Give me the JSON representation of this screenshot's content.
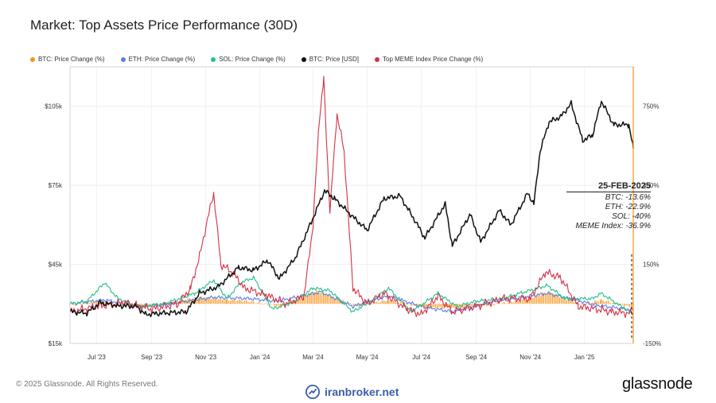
{
  "header": {
    "title": "Market: Top Assets Price Performance (30D)"
  },
  "legend": [
    {
      "label": "BTC: Price Change (%)",
      "color": "#f7931a"
    },
    {
      "label": "ETH: Price Change (%)",
      "color": "#5b7fe6"
    },
    {
      "label": "SOL: Price Change (%)",
      "color": "#21c08b"
    },
    {
      "label": "BTC: Price [USD]",
      "color": "#111111"
    },
    {
      "label": "Top MEME Index Price Change (%)",
      "color": "#d33247"
    }
  ],
  "annotation": {
    "date": "25-FEB-2025",
    "btc": "BTC: -13.6%",
    "eth": "ETH: -22.9%",
    "sol": "SOL: -40%",
    "meme": "MEME Index: -36.9%"
  },
  "footer": {
    "copyright": "© 2025 Glassnode. All Rights Reserved.",
    "watermark": "iranbroker.net",
    "brand": "glassnode"
  },
  "chart_data": {
    "type": "line",
    "title": "Market: Top Assets Price Performance (30D)",
    "x_tick_labels": [
      "Jul '23",
      "Sep '23",
      "Nov '23",
      "Jan '24",
      "Mar '24",
      "May '24",
      "Jul '24",
      "Sep '24",
      "Nov '24",
      "Jan '25"
    ],
    "x_range": [
      "2023-06-01",
      "2025-02-25"
    ],
    "y_left": {
      "ticks": [
        "$15k",
        "$45k",
        "$75k",
        "$105k"
      ],
      "range": [
        15000,
        120000
      ]
    },
    "y_right": {
      "ticks": [
        "-150%",
        "150%",
        "450%",
        "750%"
      ],
      "range": [
        -150,
        900
      ]
    },
    "series": [
      {
        "name": "BTC: Price [USD]",
        "axis": "left",
        "color": "#111111",
        "points": [
          [
            "2023-06-01",
            27000
          ],
          [
            "2023-06-20",
            26500
          ],
          [
            "2023-07-05",
            30500
          ],
          [
            "2023-07-25",
            29300
          ],
          [
            "2023-08-15",
            29000
          ],
          [
            "2023-08-25",
            26000
          ],
          [
            "2023-09-15",
            26500
          ],
          [
            "2023-10-10",
            27000
          ],
          [
            "2023-10-25",
            34000
          ],
          [
            "2023-11-15",
            36500
          ],
          [
            "2023-12-08",
            43800
          ],
          [
            "2023-12-25",
            42800
          ],
          [
            "2024-01-10",
            46500
          ],
          [
            "2024-01-23",
            39500
          ],
          [
            "2024-02-10",
            47500
          ],
          [
            "2024-02-28",
            61000
          ],
          [
            "2024-03-14",
            73000
          ],
          [
            "2024-03-25",
            70000
          ],
          [
            "2024-04-15",
            63000
          ],
          [
            "2024-05-01",
            58000
          ],
          [
            "2024-05-20",
            70000
          ],
          [
            "2024-06-07",
            71000
          ],
          [
            "2024-06-25",
            61000
          ],
          [
            "2024-07-05",
            55000
          ],
          [
            "2024-07-28",
            68000
          ],
          [
            "2024-08-05",
            52000
          ],
          [
            "2024-08-25",
            64000
          ],
          [
            "2024-09-06",
            53500
          ],
          [
            "2024-09-27",
            65500
          ],
          [
            "2024-10-10",
            60000
          ],
          [
            "2024-10-29",
            72000
          ],
          [
            "2024-11-05",
            68000
          ],
          [
            "2024-11-12",
            88000
          ],
          [
            "2024-11-22",
            99000
          ],
          [
            "2024-12-05",
            101000
          ],
          [
            "2024-12-17",
            106000
          ],
          [
            "2024-12-30",
            92000
          ],
          [
            "2025-01-10",
            94000
          ],
          [
            "2025-01-20",
            107000
          ],
          [
            "2025-02-03",
            98000
          ],
          [
            "2025-02-20",
            98000
          ],
          [
            "2025-02-25",
            89000
          ]
        ]
      },
      {
        "name": "Top MEME Index Price Change (%)",
        "axis": "right",
        "color": "#d33247",
        "points": [
          [
            "2023-06-01",
            -30
          ],
          [
            "2023-07-01",
            -10
          ],
          [
            "2023-08-01",
            5
          ],
          [
            "2023-09-01",
            -20
          ],
          [
            "2023-10-01",
            0
          ],
          [
            "2023-10-15",
            60
          ],
          [
            "2023-10-25",
            180
          ],
          [
            "2023-11-03",
            320
          ],
          [
            "2023-11-10",
            420
          ],
          [
            "2023-11-18",
            150
          ],
          [
            "2023-12-01",
            120
          ],
          [
            "2023-12-15",
            60
          ],
          [
            "2024-01-10",
            30
          ],
          [
            "2024-02-01",
            0
          ],
          [
            "2024-02-20",
            30
          ],
          [
            "2024-03-01",
            300
          ],
          [
            "2024-03-08",
            700
          ],
          [
            "2024-03-13",
            850
          ],
          [
            "2024-03-20",
            350
          ],
          [
            "2024-03-28",
            720
          ],
          [
            "2024-04-05",
            580
          ],
          [
            "2024-04-15",
            60
          ],
          [
            "2024-05-01",
            0
          ],
          [
            "2024-05-20",
            40
          ],
          [
            "2024-06-15",
            -20
          ],
          [
            "2024-07-01",
            -40
          ],
          [
            "2024-07-20",
            30
          ],
          [
            "2024-08-05",
            -30
          ],
          [
            "2024-09-01",
            -10
          ],
          [
            "2024-10-01",
            20
          ],
          [
            "2024-11-01",
            20
          ],
          [
            "2024-11-18",
            120
          ],
          [
            "2024-12-05",
            100
          ],
          [
            "2024-12-25",
            -10
          ],
          [
            "2025-01-15",
            -20
          ],
          [
            "2025-02-01",
            -30
          ],
          [
            "2025-02-25",
            -37
          ]
        ]
      },
      {
        "name": "SOL: Price Change (%)",
        "axis": "right",
        "color": "#21c08b",
        "points": [
          [
            "2023-06-01",
            0
          ],
          [
            "2023-06-20",
            10
          ],
          [
            "2023-07-10",
            80
          ],
          [
            "2023-07-25",
            20
          ],
          [
            "2023-08-15",
            -10
          ],
          [
            "2023-09-15",
            0
          ],
          [
            "2023-10-20",
            40
          ],
          [
            "2023-11-10",
            90
          ],
          [
            "2023-11-25",
            20
          ],
          [
            "2023-12-10",
            80
          ],
          [
            "2023-12-25",
            100
          ],
          [
            "2024-01-15",
            -20
          ],
          [
            "2024-02-10",
            10
          ],
          [
            "2024-03-01",
            60
          ],
          [
            "2024-03-20",
            50
          ],
          [
            "2024-04-15",
            -30
          ],
          [
            "2024-05-10",
            20
          ],
          [
            "2024-05-25",
            60
          ],
          [
            "2024-06-20",
            -30
          ],
          [
            "2024-07-20",
            40
          ],
          [
            "2024-08-10",
            -10
          ],
          [
            "2024-09-01",
            10
          ],
          [
            "2024-10-01",
            20
          ],
          [
            "2024-10-20",
            40
          ],
          [
            "2024-11-20",
            70
          ],
          [
            "2024-12-10",
            20
          ],
          [
            "2025-01-10",
            20
          ],
          [
            "2025-01-20",
            40
          ],
          [
            "2025-02-25",
            -40
          ]
        ]
      },
      {
        "name": "ETH: Price Change (%)",
        "axis": "right",
        "color": "#5b7fe6",
        "points": [
          [
            "2023-06-01",
            0
          ],
          [
            "2023-07-10",
            15
          ],
          [
            "2023-08-20",
            -10
          ],
          [
            "2023-09-20",
            0
          ],
          [
            "2023-11-10",
            25
          ],
          [
            "2023-12-20",
            20
          ],
          [
            "2024-01-20",
            10
          ],
          [
            "2024-03-10",
            45
          ],
          [
            "2024-04-15",
            -10
          ],
          [
            "2024-05-25",
            30
          ],
          [
            "2024-07-01",
            -10
          ],
          [
            "2024-08-05",
            -30
          ],
          [
            "2024-09-15",
            5
          ],
          [
            "2024-11-20",
            40
          ],
          [
            "2024-12-15",
            20
          ],
          [
            "2025-01-15",
            -5
          ],
          [
            "2025-02-25",
            -23
          ]
        ]
      },
      {
        "name": "BTC: Price Change (%)",
        "axis": "right",
        "color": "#f7931a",
        "points": [
          [
            "2023-06-01",
            -5
          ],
          [
            "2023-07-05",
            10
          ],
          [
            "2023-08-25",
            -10
          ],
          [
            "2023-10-25",
            25
          ],
          [
            "2023-11-25",
            15
          ],
          [
            "2023-12-15",
            12
          ],
          [
            "2024-01-25",
            -10
          ],
          [
            "2024-03-05",
            50
          ],
          [
            "2024-04-20",
            -10
          ],
          [
            "2024-05-25",
            15
          ],
          [
            "2024-07-05",
            -15
          ],
          [
            "2024-08-05",
            -15
          ],
          [
            "2024-09-05",
            -10
          ],
          [
            "2024-10-25",
            15
          ],
          [
            "2024-11-22",
            45
          ],
          [
            "2024-12-30",
            -5
          ],
          [
            "2025-01-20",
            15
          ],
          [
            "2025-02-25",
            -14
          ]
        ]
      }
    ]
  }
}
